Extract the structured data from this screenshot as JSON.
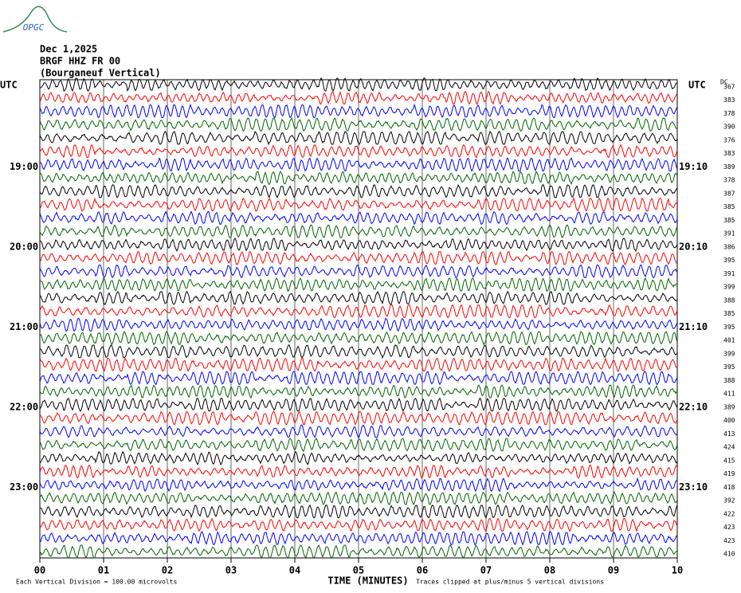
{
  "logo": "OPGC",
  "chart_data": {
    "type": "helicorder",
    "title_lines": [
      "Dec 1,2025",
      "BRGF HHZ FR 00",
      "(Bourganeuf Vertical)"
    ],
    "left_axis_label": "UTC",
    "right_axis_label": "UTC",
    "dc_label": "DC",
    "colors": [
      "#000000",
      "#ff0000",
      "#0000ff",
      "#006400"
    ],
    "rows": [
      {
        "dc": 367
      },
      {
        "dc": 383
      },
      {
        "dc": 378
      },
      {
        "dc": 390
      },
      {
        "dc": 376
      },
      {
        "dc": 383
      },
      {
        "dc": 389,
        "left": "19:00",
        "right": "19:10"
      },
      {
        "dc": 378
      },
      {
        "dc": 387
      },
      {
        "dc": 385
      },
      {
        "dc": 385
      },
      {
        "dc": 391
      },
      {
        "dc": 386,
        "left": "20:00",
        "right": "20:10"
      },
      {
        "dc": 395
      },
      {
        "dc": 391
      },
      {
        "dc": 399
      },
      {
        "dc": 388
      },
      {
        "dc": 385
      },
      {
        "dc": 395,
        "left": "21:00",
        "right": "21:10"
      },
      {
        "dc": 401
      },
      {
        "dc": 399
      },
      {
        "dc": 395
      },
      {
        "dc": 388
      },
      {
        "dc": 411
      },
      {
        "dc": 389,
        "left": "22:00",
        "right": "22:10"
      },
      {
        "dc": 400
      },
      {
        "dc": 413
      },
      {
        "dc": 424
      },
      {
        "dc": 415
      },
      {
        "dc": 419
      },
      {
        "dc": 418,
        "left": "23:00",
        "right": "23:10"
      },
      {
        "dc": 392
      },
      {
        "dc": 422
      },
      {
        "dc": 423
      },
      {
        "dc": 423
      },
      {
        "dc": 410
      }
    ],
    "xlim": [
      0,
      10
    ],
    "xticks": [
      {
        "value": 0,
        "label": "00"
      },
      {
        "value": 1,
        "label": "01"
      },
      {
        "value": 2,
        "label": "02"
      },
      {
        "value": 3,
        "label": "03"
      },
      {
        "value": 4,
        "label": "04"
      },
      {
        "value": 5,
        "label": "05"
      },
      {
        "value": 6,
        "label": "06"
      },
      {
        "value": 7,
        "label": "07"
      },
      {
        "value": 8,
        "label": "08"
      },
      {
        "value": 9,
        "label": "09"
      },
      {
        "value": 10,
        "label": "10"
      }
    ],
    "xlabel": "TIME (MINUTES)",
    "scale_note": "Each Vertical Division =  100.00 microvolts",
    "clip_note": "Traces clipped at plus/minus 5 vertical divisions"
  }
}
